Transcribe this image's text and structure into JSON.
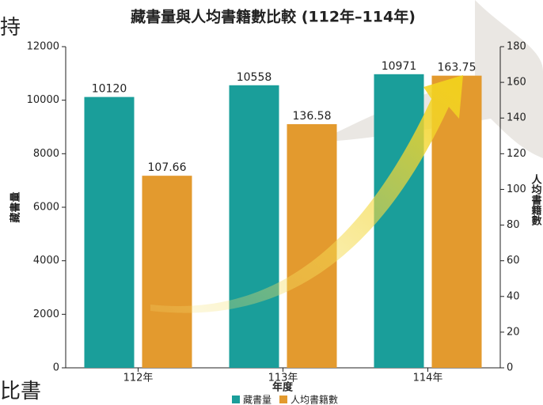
{
  "background_text": [
    "持",
    "比書"
  ],
  "chart_data": {
    "type": "bar",
    "title": "藏書量與人均書籍數比較 (112年–114年)",
    "x_label": "年度",
    "y_label": "藏書量",
    "y2_label": "人均書籍數",
    "categories": [
      "112年",
      "113年",
      "114年"
    ],
    "series": [
      {
        "name": "藏書量",
        "color": "#1a9e9a",
        "values": [
          10120,
          10558,
          10971
        ]
      },
      {
        "name": "人均書籍數",
        "color": "#e39a2e",
        "values": [
          107.66,
          136.58,
          163.75
        ],
        "axis": "y2"
      }
    ],
    "ylim": [
      0,
      12000
    ],
    "yticks": [
      0,
      2000,
      4000,
      6000,
      8000,
      10000,
      12000
    ],
    "y2lim": [
      0,
      180
    ],
    "y2ticks": [
      0,
      20,
      40,
      60,
      80,
      100,
      120,
      140,
      160,
      180
    ],
    "legend": "bottom"
  }
}
